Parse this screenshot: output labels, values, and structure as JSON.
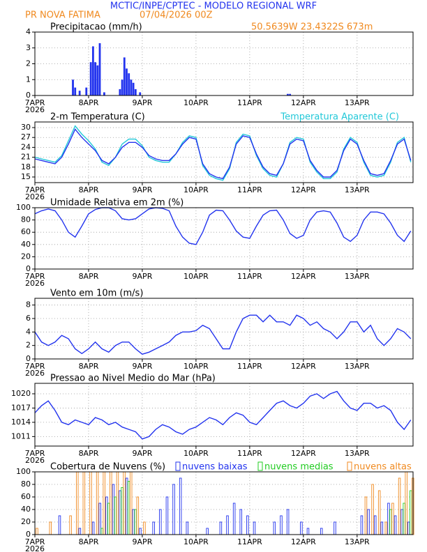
{
  "header": {
    "title": "MCTIC/INPE/CPTEC - MODELO REGIONAL WRF",
    "location": "PR NOVA FATIMA",
    "run": "07/04/2026 00Z",
    "coordinates": "50.5639W 23.4322S 673m"
  },
  "chart_data": [
    {
      "type": "bar",
      "title": "Precipitacao (mm/h)",
      "x": [
        17,
        18,
        20,
        23,
        25,
        26,
        27,
        28,
        29,
        31,
        38,
        39,
        40,
        41,
        42,
        43,
        44,
        45,
        47,
        113,
        114
      ],
      "series": [
        {
          "color": "#2233ee",
          "values": [
            1.0,
            0.5,
            0.3,
            0.5,
            2.1,
            3.1,
            2.1,
            1.9,
            3.3,
            0.2,
            0.4,
            1.0,
            2.4,
            1.7,
            1.4,
            1.0,
            0.8,
            0.4,
            0.2,
            0.1,
            0.1
          ]
        }
      ],
      "xlim": [
        0,
        169
      ],
      "xticks": [
        {
          "value": 0,
          "label": "7APR"
        },
        {
          "value": 24,
          "label": "8APR"
        },
        {
          "value": 48,
          "label": "9APR"
        },
        {
          "value": 72,
          "label": "10APR"
        },
        {
          "value": 96,
          "label": "11APR"
        },
        {
          "value": 120,
          "label": "12APR"
        },
        {
          "value": 144,
          "label": "13APR"
        }
      ],
      "xtick_sublabel": "2026",
      "ylim": [
        0,
        4
      ],
      "yticks": [
        0,
        1,
        2,
        3,
        4
      ],
      "grid": true
    },
    {
      "type": "line",
      "title": "2-m Temperatura (C)",
      "x": [
        0,
        3,
        6,
        9,
        12,
        15,
        18,
        21,
        24,
        27,
        30,
        33,
        36,
        39,
        42,
        45,
        48,
        51,
        54,
        57,
        60,
        63,
        66,
        69,
        72,
        75,
        78,
        81,
        84,
        87,
        90,
        93,
        96,
        99,
        102,
        105,
        108,
        111,
        114,
        117,
        120,
        123,
        126,
        129,
        132,
        135,
        138,
        141,
        144,
        147,
        150,
        153,
        156,
        159,
        162,
        165,
        168
      ],
      "series": [
        {
          "name": "Temperatura Aparente (C)",
          "color": "#22c8d8",
          "values": [
            21,
            20.5,
            20,
            19.5,
            21.5,
            26,
            30.5,
            28,
            26,
            23.5,
            19.5,
            18.5,
            21,
            25,
            26.5,
            26.5,
            24.5,
            21,
            20,
            19.5,
            19.5,
            22,
            25.5,
            27.5,
            27,
            18.5,
            15.5,
            14.5,
            14,
            17.5,
            25.5,
            28,
            27.5,
            21.5,
            17.5,
            15.5,
            15,
            19,
            25.5,
            27,
            26.5,
            19.5,
            16.5,
            14.5,
            14.5,
            16.5,
            23.5,
            27,
            25.5,
            19.5,
            15.5,
            15,
            15.5,
            19.5,
            25.5,
            27,
            19.5
          ]
        },
        {
          "color": "#2233ee",
          "values": [
            20.5,
            20,
            19.5,
            19,
            21,
            25,
            29.5,
            27,
            25,
            23,
            20,
            19,
            21,
            24,
            25.5,
            25.5,
            24,
            21.5,
            20.5,
            20,
            20,
            22,
            25,
            27,
            26.5,
            19,
            16,
            15,
            14.5,
            18,
            25,
            27.5,
            27,
            22,
            18,
            16,
            15.5,
            19,
            25,
            26.5,
            26,
            20,
            17,
            15,
            15,
            17,
            23,
            26.5,
            25,
            20,
            16,
            15.5,
            16,
            20,
            25,
            26.5,
            20
          ]
        }
      ],
      "xlim": [
        0,
        169
      ],
      "xticks": [
        {
          "value": 0,
          "label": "7APR"
        },
        {
          "value": 24,
          "label": "8APR"
        },
        {
          "value": 48,
          "label": "9APR"
        },
        {
          "value": 72,
          "label": "10APR"
        },
        {
          "value": 96,
          "label": "11APR"
        },
        {
          "value": 120,
          "label": "12APR"
        },
        {
          "value": 144,
          "label": "13APR"
        }
      ],
      "xtick_sublabel": "2026",
      "ylim": [
        13.3,
        31.7
      ],
      "yticks": [
        15,
        18,
        21,
        24,
        27,
        30
      ],
      "grid": true
    },
    {
      "type": "line",
      "title": "Umidade Relativa em 2m (%)",
      "x": [
        0,
        3,
        6,
        9,
        12,
        15,
        18,
        21,
        24,
        27,
        30,
        33,
        36,
        39,
        42,
        45,
        48,
        51,
        54,
        57,
        60,
        63,
        66,
        69,
        72,
        75,
        78,
        81,
        84,
        87,
        90,
        93,
        96,
        99,
        102,
        105,
        108,
        111,
        114,
        117,
        120,
        123,
        126,
        129,
        132,
        135,
        138,
        141,
        144,
        147,
        150,
        153,
        156,
        159,
        162,
        165,
        168
      ],
      "series": [
        {
          "color": "#2233ee",
          "values": [
            90,
            95,
            98,
            95,
            80,
            60,
            52,
            70,
            90,
            97,
            100,
            100,
            95,
            82,
            80,
            82,
            90,
            98,
            100,
            99,
            95,
            70,
            52,
            42,
            40,
            60,
            88,
            96,
            95,
            80,
            62,
            52,
            50,
            70,
            88,
            95,
            96,
            80,
            58,
            50,
            55,
            80,
            93,
            95,
            93,
            75,
            52,
            45,
            55,
            80,
            93,
            93,
            90,
            75,
            55,
            45,
            62
          ]
        }
      ],
      "xlim": [
        0,
        169
      ],
      "xticks": [
        {
          "value": 0,
          "label": "7APR"
        },
        {
          "value": 24,
          "label": "8APR"
        },
        {
          "value": 48,
          "label": "9APR"
        },
        {
          "value": 72,
          "label": "10APR"
        },
        {
          "value": 96,
          "label": "11APR"
        },
        {
          "value": 120,
          "label": "12APR"
        },
        {
          "value": 144,
          "label": "13APR"
        }
      ],
      "xtick_sublabel": "2026",
      "ylim": [
        0,
        100
      ],
      "yticks": [
        0,
        20,
        40,
        60,
        80,
        100
      ],
      "grid": true
    },
    {
      "type": "line",
      "title": "Vento em 10m (m/s)",
      "x": [
        0,
        3,
        6,
        9,
        12,
        15,
        18,
        21,
        24,
        27,
        30,
        33,
        36,
        39,
        42,
        45,
        48,
        51,
        54,
        57,
        60,
        63,
        66,
        69,
        72,
        75,
        78,
        81,
        84,
        87,
        90,
        93,
        96,
        99,
        102,
        105,
        108,
        111,
        114,
        117,
        120,
        123,
        126,
        129,
        132,
        135,
        138,
        141,
        144,
        147,
        150,
        153,
        156,
        159,
        162,
        165,
        168
      ],
      "series": [
        {
          "color": "#2233ee",
          "values": [
            4,
            2.5,
            2,
            2.5,
            3.5,
            3,
            1.5,
            0.8,
            1.5,
            2.5,
            1.5,
            1,
            2,
            2.5,
            2.5,
            1.5,
            0.7,
            1,
            1.5,
            2,
            2.5,
            3.5,
            4,
            4,
            4.2,
            5,
            4.5,
            3,
            1.5,
            1.5,
            4,
            6,
            6.5,
            6.5,
            5.5,
            6.5,
            5.5,
            5.5,
            5,
            6.5,
            6,
            5,
            5.5,
            4.5,
            4,
            3,
            4,
            5.5,
            5.5,
            4,
            5,
            3,
            2,
            3,
            4.5,
            4,
            3
          ]
        }
      ],
      "xlim": [
        0,
        169
      ],
      "xticks": [
        {
          "value": 0,
          "label": "7APR"
        },
        {
          "value": 24,
          "label": "8APR"
        },
        {
          "value": 48,
          "label": "9APR"
        },
        {
          "value": 72,
          "label": "10APR"
        },
        {
          "value": 96,
          "label": "11APR"
        },
        {
          "value": 120,
          "label": "12APR"
        },
        {
          "value": 144,
          "label": "13APR"
        }
      ],
      "xtick_sublabel": "2026",
      "ylim": [
        0,
        9
      ],
      "yticks": [
        0,
        2,
        4,
        6,
        8
      ],
      "grid": true
    },
    {
      "type": "line",
      "title": "Pressao ao Nivel Medio do Mar (hPa)",
      "x": [
        0,
        3,
        6,
        9,
        12,
        15,
        18,
        21,
        24,
        27,
        30,
        33,
        36,
        39,
        42,
        45,
        48,
        51,
        54,
        57,
        60,
        63,
        66,
        69,
        72,
        75,
        78,
        81,
        84,
        87,
        90,
        93,
        96,
        99,
        102,
        105,
        108,
        111,
        114,
        117,
        120,
        123,
        126,
        129,
        132,
        135,
        138,
        141,
        144,
        147,
        150,
        153,
        156,
        159,
        162,
        165,
        168
      ],
      "series": [
        {
          "color": "#2233ee",
          "values": [
            1016,
            1017.5,
            1018.5,
            1016.5,
            1014,
            1013.5,
            1014.5,
            1014,
            1013.5,
            1015,
            1014.5,
            1013.5,
            1014,
            1013,
            1012.5,
            1012,
            1010.5,
            1011,
            1012.5,
            1013.5,
            1013,
            1012,
            1011.5,
            1012.5,
            1013,
            1014,
            1015,
            1014.5,
            1013.5,
            1015,
            1016,
            1015.5,
            1014,
            1013.5,
            1015,
            1016.5,
            1018,
            1018.5,
            1017.5,
            1017,
            1018,
            1019.5,
            1020,
            1019,
            1020,
            1020.5,
            1018.5,
            1017,
            1016.5,
            1018,
            1018,
            1017,
            1017.5,
            1016.5,
            1014,
            1012.5,
            1014.5
          ]
        }
      ],
      "xlim": [
        0,
        169
      ],
      "xticks": [
        {
          "value": 0,
          "label": "7APR"
        },
        {
          "value": 24,
          "label": "8APR"
        },
        {
          "value": 48,
          "label": "9APR"
        },
        {
          "value": 72,
          "label": "10APR"
        },
        {
          "value": 96,
          "label": "11APR"
        },
        {
          "value": 120,
          "label": "12APR"
        },
        {
          "value": 144,
          "label": "13APR"
        }
      ],
      "xtick_sublabel": "2026",
      "ylim": [
        1009,
        1022.2
      ],
      "yticks": [
        1011,
        1014,
        1017,
        1020
      ],
      "grid": true
    },
    {
      "type": "bar",
      "title": "Cobertura de Nuvens (%)",
      "x": [
        0,
        3,
        6,
        9,
        12,
        15,
        18,
        21,
        24,
        27,
        30,
        33,
        36,
        39,
        42,
        45,
        48,
        51,
        54,
        57,
        60,
        63,
        66,
        69,
        72,
        75,
        78,
        81,
        84,
        87,
        90,
        93,
        96,
        99,
        102,
        105,
        108,
        111,
        114,
        117,
        120,
        123,
        126,
        129,
        132,
        135,
        138,
        141,
        144,
        147,
        150,
        153,
        156,
        159,
        162,
        165,
        168
      ],
      "series": [
        {
          "name": "nuvens baixas",
          "color": "#2233ee",
          "values": [
            0,
            0,
            0,
            0,
            30,
            0,
            0,
            10,
            0,
            20,
            50,
            60,
            80,
            70,
            90,
            40,
            10,
            0,
            20,
            40,
            60,
            80,
            90,
            20,
            0,
            0,
            10,
            0,
            20,
            30,
            50,
            40,
            30,
            20,
            0,
            0,
            20,
            30,
            40,
            0,
            20,
            10,
            0,
            10,
            0,
            20,
            0,
            0,
            0,
            30,
            40,
            30,
            20,
            50,
            30,
            40,
            20
          ]
        },
        {
          "name": "nuvens medias",
          "color": "#22cc22",
          "values": [
            0,
            0,
            0,
            0,
            0,
            0,
            0,
            0,
            0,
            0,
            10,
            50,
            60,
            75,
            85,
            40,
            0,
            0,
            0,
            0,
            0,
            0,
            0,
            0,
            0,
            0,
            0,
            0,
            0,
            0,
            0,
            0,
            0,
            0,
            0,
            0,
            0,
            0,
            0,
            0,
            0,
            0,
            0,
            0,
            0,
            0,
            0,
            0,
            0,
            0,
            0,
            0,
            0,
            40,
            0,
            50,
            70
          ]
        },
        {
          "name": "nuvens altas",
          "color": "#f08a20",
          "values": [
            10,
            0,
            20,
            0,
            0,
            30,
            100,
            100,
            100,
            100,
            100,
            100,
            100,
            100,
            100,
            60,
            20,
            0,
            0,
            0,
            0,
            0,
            0,
            0,
            0,
            0,
            0,
            0,
            0,
            0,
            0,
            0,
            0,
            0,
            0,
            0,
            0,
            0,
            0,
            0,
            0,
            0,
            0,
            0,
            0,
            0,
            0,
            0,
            0,
            60,
            80,
            70,
            20,
            50,
            90,
            100,
            90
          ]
        }
      ],
      "xlim": [
        0,
        169
      ],
      "xticks": [
        {
          "value": 0,
          "label": "7APR"
        },
        {
          "value": 24,
          "label": "8APR"
        },
        {
          "value": 48,
          "label": "9APR"
        },
        {
          "value": 72,
          "label": "10APR"
        },
        {
          "value": 96,
          "label": "11APR"
        },
        {
          "value": 120,
          "label": "12APR"
        },
        {
          "value": 144,
          "label": "13APR"
        }
      ],
      "xtick_sublabel": "2026",
      "ylim": [
        0,
        100
      ],
      "yticks": [
        0,
        20,
        40,
        60,
        80,
        100
      ],
      "grid": true
    }
  ]
}
